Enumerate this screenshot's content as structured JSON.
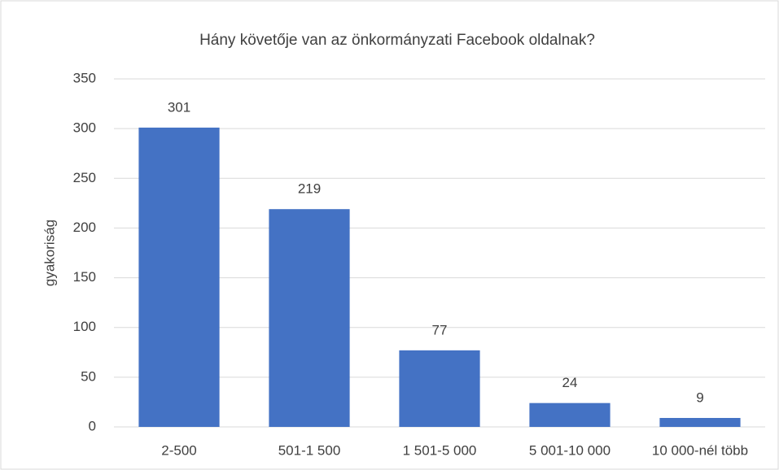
{
  "chart_data": {
    "type": "bar",
    "title": "Hány követője van az önkormányzati Facebook oldalnak?",
    "y_label": "gyakoriság",
    "categories": [
      "2-500",
      "501-1 500",
      "1 501-5 000",
      "5 001-10 000",
      "10 000-nél több"
    ],
    "values": [
      301,
      219,
      77,
      24,
      9
    ],
    "color": "#4472c4",
    "ylim": [
      0,
      350
    ],
    "yticks": [
      0,
      50,
      100,
      150,
      200,
      250,
      300,
      350
    ],
    "grid": true,
    "data_labels": true
  }
}
